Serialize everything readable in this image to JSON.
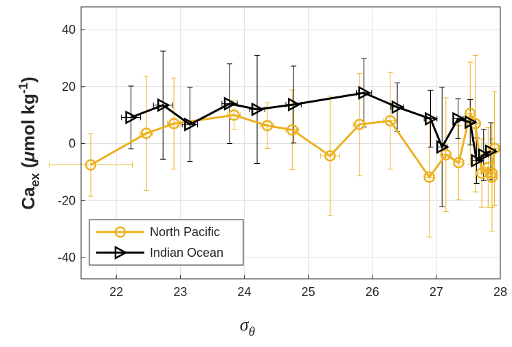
{
  "chart_data": {
    "type": "line",
    "xlabel": [
      "σ",
      "θ"
    ],
    "ylabel": [
      "Ca",
      "ex",
      " (",
      "μ",
      "mol kg",
      "-1",
      ")"
    ],
    "xlim": [
      21.45,
      28
    ],
    "xticks": [
      22,
      23,
      24,
      25,
      26,
      27,
      28
    ],
    "ylim": [
      -47.5,
      48
    ],
    "yticks": [
      -40,
      -20,
      0,
      20,
      40
    ],
    "grid": true,
    "legend": "lower left",
    "series": [
      {
        "name": "North Pacific",
        "color": "#EDB120",
        "marker": "circle",
        "x": [
          21.6,
          22.47,
          22.9,
          23.84,
          24.36,
          24.75,
          25.34,
          25.8,
          26.28,
          26.89,
          27.15,
          27.35,
          27.53,
          27.61,
          27.71,
          27.81,
          27.87,
          27.87,
          27.91
        ],
        "values": [
          -7.5,
          3.6,
          7,
          10,
          6.3,
          4.8,
          -4.3,
          6.7,
          8,
          -11.8,
          -3.9,
          -6.7,
          10.6,
          7,
          -10.4,
          -8.4,
          -11.8,
          -10.4,
          -1.7
        ],
        "yerr": [
          11,
          20,
          16,
          5,
          8,
          14,
          21,
          18,
          17,
          21,
          20,
          13,
          18,
          24,
          12,
          14,
          19,
          12,
          20
        ],
        "xerr": [
          0.65,
          0.1,
          0.1,
          0.1,
          0.1,
          0.1,
          0.15,
          0.1,
          0.1,
          0.08,
          0.08,
          0.08,
          0.08,
          0.08,
          0.08,
          0.08,
          0.08,
          0.08,
          0.08
        ]
      },
      {
        "name": "Indian Ocean",
        "color": "#000000",
        "marker": "triangle-right",
        "x": [
          22.23,
          22.73,
          23.15,
          23.77,
          24.2,
          24.77,
          25.87,
          26.39,
          26.91,
          27.09,
          27.34,
          27.53,
          27.63,
          27.74,
          27.85
        ],
        "values": [
          9.2,
          13.5,
          6.7,
          14,
          12,
          13.7,
          17.8,
          12.8,
          8.7,
          -1.2,
          8.7,
          7.5,
          -6,
          -4,
          -2.7
        ],
        "yerr": [
          11,
          19,
          13,
          14,
          19,
          13.5,
          12,
          8.5,
          10,
          21,
          7,
          8,
          8,
          9,
          10
        ],
        "xerr": [
          0.15,
          0.15,
          0.12,
          0.12,
          0.12,
          0.12,
          0.12,
          0.1,
          0.1,
          0.08,
          0.08,
          0.08,
          0.08,
          0.08,
          0.08
        ]
      }
    ]
  }
}
